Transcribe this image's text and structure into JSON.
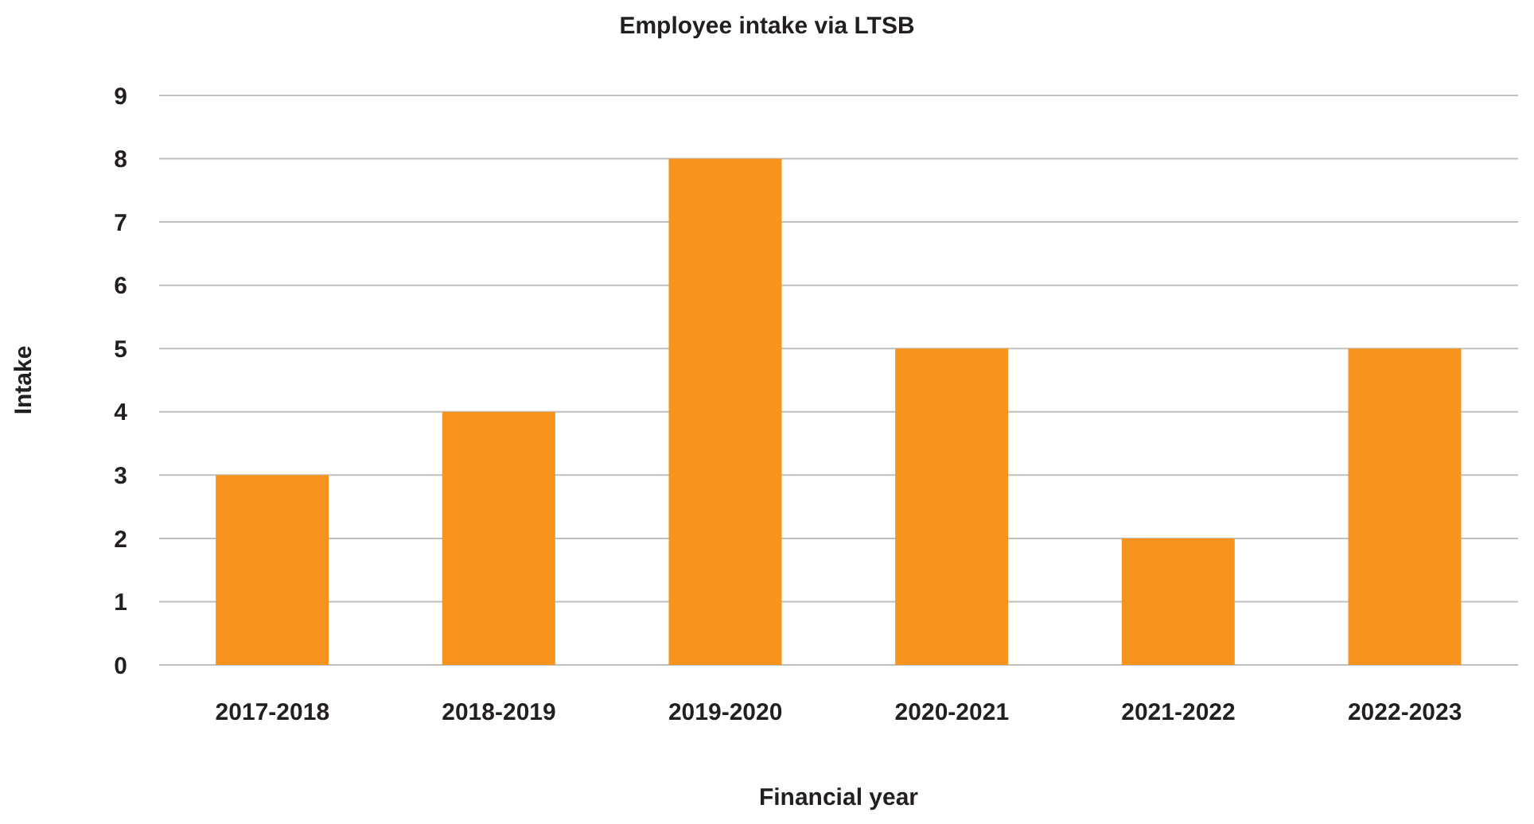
{
  "chart_data": {
    "type": "bar",
    "title": "Employee intake via LTSB",
    "xlabel": "Financial year",
    "ylabel": "Intake",
    "categories": [
      "2017-2018",
      "2018-2019",
      "2019-2020",
      "2020-2021",
      "2021-2022",
      "2022-2023"
    ],
    "values": [
      3,
      4,
      8,
      5,
      2,
      5
    ],
    "color": "#f7941d",
    "ylim": [
      0,
      9
    ],
    "yticks": [
      0,
      1,
      2,
      3,
      4,
      5,
      6,
      7,
      8,
      9
    ],
    "grid": "y"
  }
}
